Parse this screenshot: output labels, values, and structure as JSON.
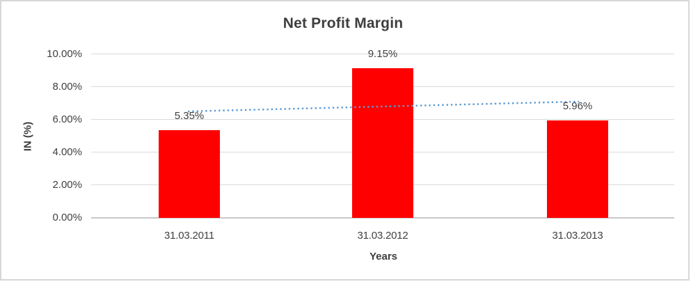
{
  "chart_data": {
    "type": "bar",
    "title": "Net Profit Margin",
    "categories": [
      "31.03.2011",
      "31.03.2012",
      "31.03.2013"
    ],
    "values": [
      5.35,
      9.15,
      5.96
    ],
    "data_labels": [
      "5.35%",
      "9.15%",
      "5.96%"
    ],
    "xlabel": "Years",
    "ylabel": "IN (%)",
    "ylim": [
      0,
      10
    ],
    "ytick_labels": [
      "10.00%",
      "8.00%",
      "6.00%",
      "4.00%",
      "2.00%",
      "0.00%"
    ],
    "grid": true,
    "legend": "none",
    "bar_color": "#FF0000",
    "text_color": "#404040",
    "gridline_color": "#D9D9D9",
    "trendline": {
      "type": "linear",
      "style": "dotted",
      "color": "#5B9BD5",
      "endpoint_values": [
        6.51,
        7.11
      ]
    }
  }
}
